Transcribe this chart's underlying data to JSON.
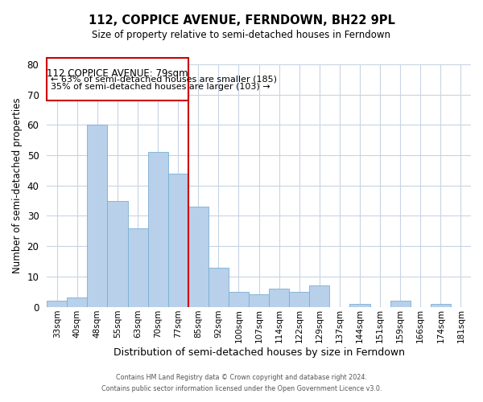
{
  "title": "112, COPPICE AVENUE, FERNDOWN, BH22 9PL",
  "subtitle": "Size of property relative to semi-detached houses in Ferndown",
  "xlabel": "Distribution of semi-detached houses by size in Ferndown",
  "ylabel": "Number of semi-detached properties",
  "footer_line1": "Contains HM Land Registry data © Crown copyright and database right 2024.",
  "footer_line2": "Contains public sector information licensed under the Open Government Licence v3.0.",
  "bin_labels": [
    "33sqm",
    "40sqm",
    "48sqm",
    "55sqm",
    "63sqm",
    "70sqm",
    "77sqm",
    "85sqm",
    "92sqm",
    "100sqm",
    "107sqm",
    "114sqm",
    "122sqm",
    "129sqm",
    "137sqm",
    "144sqm",
    "151sqm",
    "159sqm",
    "166sqm",
    "174sqm",
    "181sqm"
  ],
  "bin_values": [
    2,
    3,
    60,
    35,
    26,
    51,
    44,
    33,
    13,
    5,
    4,
    6,
    5,
    7,
    0,
    1,
    0,
    2,
    0,
    1,
    0
  ],
  "property_line_bin": 6,
  "annotation_title": "112 COPPICE AVENUE: 79sqm",
  "annotation_line2": "← 63% of semi-detached houses are smaller (185)",
  "annotation_line3": "35% of semi-detached houses are larger (103) →",
  "bar_color": "#b8d0ea",
  "bar_edge_color": "#7aafd4",
  "line_color": "#cc0000",
  "box_edge_color": "#cc0000",
  "ylim": [
    0,
    80
  ],
  "yticks": [
    0,
    10,
    20,
    30,
    40,
    50,
    60,
    70,
    80
  ],
  "background_color": "#ffffff",
  "grid_color": "#c8d4e4"
}
